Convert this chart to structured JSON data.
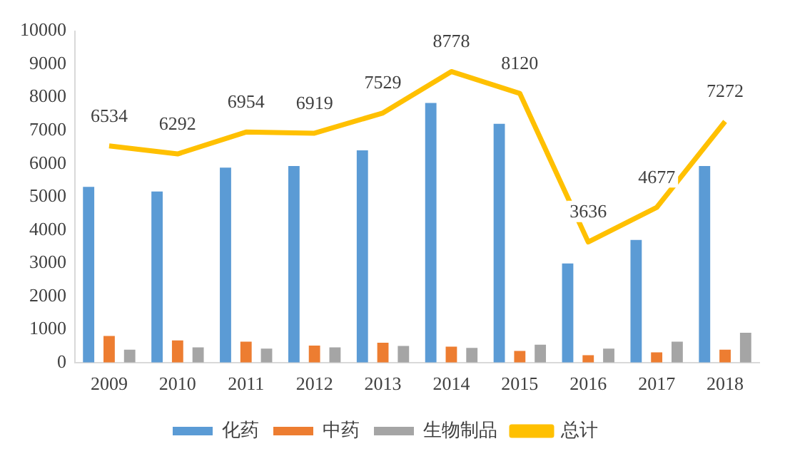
{
  "chart_data": {
    "type": "bar",
    "categories": [
      "2009",
      "2010",
      "2011",
      "2012",
      "2013",
      "2014",
      "2015",
      "2016",
      "2017",
      "2018"
    ],
    "ylim": [
      0,
      10000
    ],
    "yticks": [
      0,
      1000,
      2000,
      3000,
      4000,
      5000,
      6000,
      7000,
      8000,
      9000,
      10000
    ],
    "grid": false,
    "legend": "bottom",
    "series": [
      {
        "name": "化药",
        "color": "#5b9bd5",
        "values": [
          5300,
          5160,
          5880,
          5930,
          6400,
          7830,
          7200,
          2990,
          3700,
          5930
        ]
      },
      {
        "name": "中药",
        "color": "#ed7d31",
        "values": [
          800,
          670,
          630,
          510,
          600,
          480,
          350,
          220,
          310,
          390
        ]
      },
      {
        "name": "生物制品",
        "color": "#a5a5a5",
        "values": [
          390,
          460,
          420,
          460,
          500,
          440,
          540,
          420,
          630,
          900
        ]
      },
      {
        "name": "总计",
        "type": "line",
        "color": "#ffc000",
        "values": [
          6534,
          6292,
          6954,
          6919,
          7529,
          8778,
          8120,
          3636,
          4677,
          7272
        ],
        "value_labels": [
          "6534",
          "6292",
          "6954",
          "6919",
          "7529",
          "8778",
          "8120",
          "3636",
          "4677",
          "7272"
        ]
      }
    ]
  }
}
